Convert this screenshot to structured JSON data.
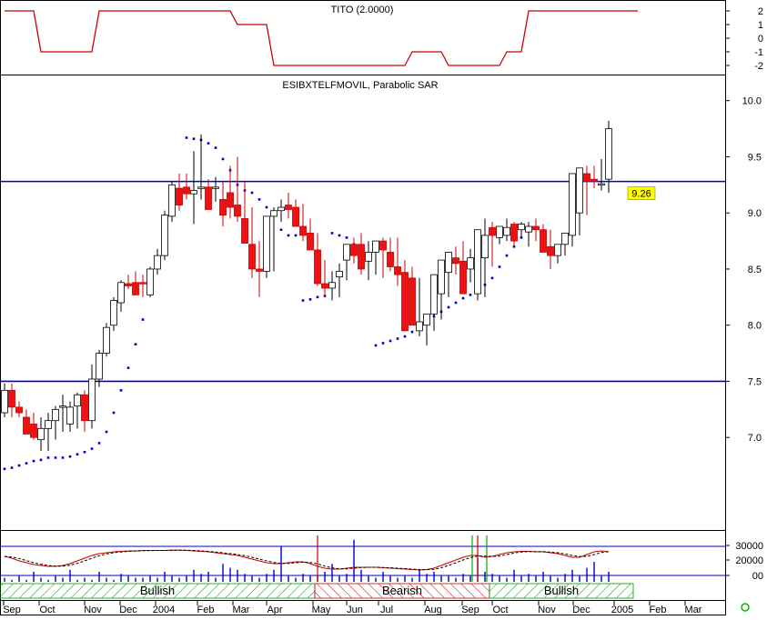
{
  "chart_data": [
    {
      "type": "line",
      "title": "TITO (2.0000)",
      "ylim": [
        -2.4,
        2.4
      ],
      "y_ticks": [
        "2",
        "1",
        "0",
        "-1",
        "-2"
      ],
      "colors": {
        "line": "#cc0000"
      },
      "series": [
        {
          "name": "TITO",
          "values": [
            2,
            2,
            2,
            2,
            2,
            -1,
            -1,
            -1,
            -1,
            -1,
            -1,
            -1,
            -1,
            2,
            2,
            2,
            2,
            2,
            2,
            2,
            2,
            2,
            2,
            2,
            2,
            2,
            2,
            2,
            2,
            2,
            2,
            2,
            1,
            1,
            1,
            1,
            1,
            -2,
            -2,
            -2,
            -2,
            -2,
            -2,
            -2,
            -2,
            -2,
            -2,
            -2,
            -2,
            -2,
            -2,
            -2,
            -2,
            -2,
            -2,
            -2,
            -1,
            -1,
            -1,
            -1,
            -1,
            -2,
            -2,
            -2,
            -2,
            -2,
            -2,
            -2,
            -2,
            -1,
            -1,
            -1,
            2,
            2,
            2,
            2,
            2,
            2,
            2,
            2,
            2,
            2,
            2,
            2,
            2,
            2,
            2,
            2
          ]
        }
      ]
    },
    {
      "type": "candlestick",
      "title": "ESIBXTELFMOVIL, Parabolic SAR",
      "ylim": [
        6.2,
        10.2
      ],
      "y_ticks": [
        "10.0",
        "9.5",
        "9.0",
        "8.5",
        "8.0",
        "7.5",
        "7.0"
      ],
      "x_tick_labels": [
        "Sep",
        "Oct",
        "Nov",
        "Dec",
        "2004",
        "Feb",
        "Mar",
        "Apr",
        "May",
        "Jun",
        "Jul",
        "Aug",
        "Sep",
        "Oct",
        "Nov",
        "Dec",
        "2005",
        "Feb",
        "Mar"
      ],
      "last_price_label": "9.26",
      "horizontal_lines": [
        9.28,
        7.5
      ],
      "colors": {
        "up": "#ffffff",
        "down": "#ee1111",
        "sar": "#0000cc",
        "hline": "#0000cc",
        "price_tag": "#ffff00"
      },
      "series": [
        {
          "name": "open",
          "values": [
            7.22,
            7.42,
            7.27,
            7.18,
            7.12,
            6.98,
            7.08,
            7.15,
            7.27,
            7.12,
            7.28,
            7.38,
            7.15,
            7.52,
            7.75,
            8.0,
            8.2,
            8.37,
            8.38,
            8.38,
            8.27,
            8.5,
            8.62,
            8.97,
            9.22,
            9.23,
            9.17,
            9.22,
            9.23,
            9.23,
            9.12,
            9.18,
            9.07,
            8.95,
            8.72,
            8.5,
            8.48,
            8.97,
            9.02,
            9.07,
            9.05,
            8.88,
            8.82,
            8.67,
            8.37,
            8.33,
            8.43,
            8.58,
            8.72,
            8.72,
            8.57,
            8.65,
            8.75,
            8.65,
            8.52,
            8.47,
            8.42,
            7.95,
            8.0,
            8.1,
            8.28,
            8.47,
            8.6,
            8.57,
            8.5,
            8.28,
            8.6,
            8.87,
            8.78,
            8.8,
            8.9,
            8.85,
            8.83,
            8.88,
            8.85,
            8.7,
            8.62,
            8.72,
            8.8,
            9.0,
            9.35,
            9.3,
            9.25,
            9.3
          ]
        },
        {
          "name": "high",
          "values": [
            7.48,
            7.48,
            7.32,
            7.25,
            7.22,
            7.18,
            7.22,
            7.28,
            7.38,
            7.32,
            7.4,
            7.42,
            7.65,
            7.78,
            8.02,
            8.25,
            8.4,
            8.45,
            8.48,
            8.45,
            8.52,
            8.68,
            9.02,
            9.28,
            9.35,
            9.35,
            9.55,
            9.7,
            9.3,
            9.32,
            9.28,
            9.42,
            9.5,
            9.28,
            9.05,
            8.75,
            8.62,
            9.05,
            9.12,
            9.18,
            9.12,
            9.08,
            8.95,
            8.82,
            8.58,
            8.48,
            8.55,
            8.68,
            8.78,
            8.82,
            8.75,
            8.72,
            8.78,
            8.78,
            8.78,
            8.58,
            8.52,
            8.42,
            8.05,
            8.4,
            8.55,
            8.62,
            8.7,
            8.75,
            8.68,
            8.6,
            8.95,
            8.92,
            8.88,
            8.95,
            8.92,
            8.92,
            8.92,
            8.95,
            8.9,
            8.85,
            8.7,
            8.82,
            9.0,
            9.38,
            9.42,
            9.42,
            9.48,
            9.82
          ]
        },
        {
          "name": "low",
          "values": [
            7.18,
            7.18,
            7.18,
            7.12,
            6.98,
            6.88,
            6.88,
            6.98,
            7.05,
            7.05,
            7.08,
            7.05,
            7.08,
            7.45,
            7.72,
            7.95,
            8.12,
            8.32,
            8.28,
            8.25,
            8.25,
            8.45,
            8.58,
            8.92,
            9.02,
            9.12,
            8.9,
            9.12,
            9.15,
            9.1,
            8.88,
            8.95,
            8.92,
            8.8,
            8.42,
            8.25,
            8.42,
            8.48,
            8.92,
            8.95,
            8.88,
            8.75,
            8.7,
            8.35,
            8.25,
            8.22,
            8.25,
            8.4,
            8.55,
            8.45,
            8.4,
            8.45,
            8.42,
            8.48,
            8.35,
            8.38,
            8.3,
            7.9,
            7.82,
            7.95,
            8.05,
            8.25,
            8.45,
            8.45,
            8.38,
            8.22,
            8.25,
            8.52,
            8.72,
            8.75,
            8.7,
            8.78,
            8.7,
            8.75,
            8.7,
            8.5,
            8.55,
            8.62,
            8.7,
            8.8,
            8.98,
            9.22,
            9.2,
            9.18
          ]
        },
        {
          "name": "close",
          "values": [
            7.42,
            7.27,
            7.22,
            7.03,
            7.0,
            7.08,
            7.15,
            7.25,
            7.28,
            7.27,
            7.38,
            7.15,
            7.52,
            7.75,
            7.98,
            8.22,
            8.38,
            8.35,
            8.27,
            8.37,
            8.5,
            8.62,
            8.98,
            9.25,
            9.07,
            9.17,
            9.2,
            9.23,
            9.03,
            9.23,
            8.98,
            9.05,
            8.97,
            8.73,
            8.5,
            8.48,
            8.97,
            9.02,
            9.05,
            9.03,
            8.88,
            8.8,
            8.67,
            8.37,
            8.33,
            8.38,
            8.48,
            8.72,
            8.62,
            8.5,
            8.65,
            8.75,
            8.67,
            8.52,
            8.45,
            7.95,
            8.0,
            8.03,
            8.1,
            8.45,
            8.58,
            8.65,
            8.55,
            8.28,
            8.6,
            8.85,
            8.8,
            8.8,
            8.88,
            8.87,
            8.75,
            8.9,
            8.88,
            8.85,
            8.65,
            8.62,
            8.72,
            8.82,
            9.35,
            9.4,
            9.28,
            9.28,
            9.26,
            9.75
          ]
        },
        {
          "name": "Parabolic SAR",
          "values": [
            6.72,
            6.73,
            6.75,
            6.77,
            6.79,
            6.8,
            6.82,
            6.82,
            6.82,
            6.83,
            6.85,
            6.87,
            6.9,
            6.95,
            7.05,
            7.22,
            7.42,
            7.62,
            7.83,
            8.05,
            8.3,
            8.55,
            8.78,
            9.0,
            9.2,
            9.67,
            9.66,
            9.65,
            9.62,
            9.58,
            9.48,
            9.38,
            9.25,
            9.2,
            9.18,
            9.12,
            9.05,
            8.98,
            8.85,
            8.8,
            8.8,
            8.22,
            8.23,
            8.25,
            8.26,
            8.82,
            8.8,
            8.78,
            8.72,
            8.68,
            8.62,
            7.82,
            7.84,
            7.86,
            7.88,
            7.9,
            7.94,
            7.97,
            8.02,
            8.08,
            8.12,
            8.16,
            8.2,
            8.24,
            8.27,
            8.31,
            8.36,
            8.42,
            8.52,
            8.62,
            8.7,
            8.78
          ]
        }
      ]
    },
    {
      "type": "bar",
      "title": "",
      "y_ticks": [
        "30000",
        "20000",
        "00"
      ],
      "zone_labels": [
        "Bullish",
        "Bearish",
        "Bullish"
      ],
      "colors": {
        "volume": "#0000cc",
        "signal_red": "#cc0000",
        "signal_green": "#00aa00",
        "osc_line": "#cc0000",
        "osc_signal": "#000000",
        "bull_hatch": "#009900",
        "bear_hatch": "#cc0000"
      },
      "series": [
        {
          "name": "volume",
          "values": [
            0.2,
            0.1,
            0.3,
            0.1,
            0.5,
            0.2,
            0.1,
            0.3,
            0.2,
            0.6,
            0.1,
            0.2,
            0.1,
            0.5,
            0.2,
            0.1,
            0.4,
            0.3,
            0.2,
            0.2,
            0.3,
            0.2,
            0.5,
            0.3,
            0.2,
            0.3,
            0.6,
            0.4,
            0.5,
            0.2,
            0.9,
            0.7,
            0.6,
            0.4,
            0.3,
            0.2,
            0.4,
            0.6,
            1.8,
            0.3,
            0.2,
            0.4,
            0.3,
            0.3,
            0.5,
            0.9,
            0.3,
            0.4,
            2.1,
            0.6,
            0.3,
            0.2,
            0.5,
            0.3,
            0.2,
            0.3,
            0.2,
            0.6,
            0.4,
            0.5,
            0.3,
            0.3,
            0.2,
            0.4,
            0.3,
            1.2,
            0.5,
            0.4,
            0.3,
            0.2,
            0.6,
            0.3,
            0.4,
            0.3,
            0.5,
            0.3,
            0.2,
            0.4,
            0.6,
            0.3,
            0.7,
            1.0,
            0.3,
            0.5
          ]
        },
        {
          "name": "oscillator",
          "values": [
            0.2,
            0.0,
            -0.3,
            -0.5,
            -0.7,
            -0.8,
            -0.9,
            -0.9,
            -0.8,
            -0.6,
            -0.3,
            0.0,
            0.3,
            0.5,
            0.6,
            0.7,
            0.75,
            0.8,
            0.8,
            0.85,
            0.85,
            0.85,
            0.85,
            0.88,
            0.9,
            0.85,
            0.8,
            0.75,
            0.7,
            0.6,
            0.5,
            0.4,
            0.3,
            0.1,
            -0.1,
            -0.3,
            -0.5,
            -0.6,
            -0.6,
            -0.5,
            -0.4,
            -0.4,
            -0.6,
            -0.9,
            -1.1,
            -1.2,
            -1.2,
            -1.1,
            -1.0,
            -1.0,
            -1.0,
            -1.0,
            -1.05,
            -1.1,
            -1.15,
            -1.2,
            -1.25,
            -1.3,
            -1.25,
            -1.1,
            -0.8,
            -0.5,
            -0.2,
            0.1,
            0.3,
            0.3,
            0.1,
            0.2,
            0.4,
            0.6,
            0.7,
            0.75,
            0.75,
            0.7,
            0.7,
            0.6,
            0.5,
            0.3,
            0.1,
            0.1,
            0.4,
            0.7,
            0.8,
            0.7
          ]
        }
      ]
    }
  ]
}
